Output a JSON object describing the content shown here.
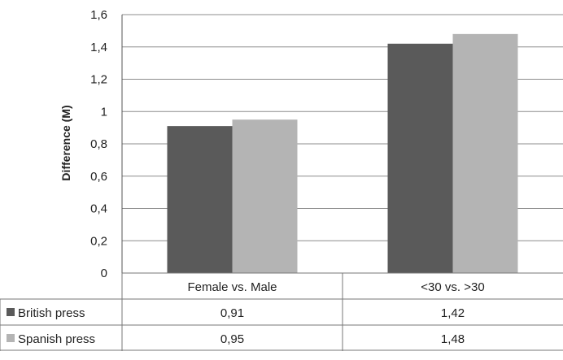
{
  "chart_data": {
    "type": "bar",
    "title": "",
    "xlabel": "",
    "ylabel": "Difference (M)",
    "ylim": [
      0,
      1.6
    ],
    "yticks": [
      "0",
      "0,2",
      "0,4",
      "0,6",
      "0,8",
      "1",
      "1,2",
      "1,4",
      "1,6"
    ],
    "grid": true,
    "categories": [
      "Female vs. Male",
      "<30 vs. >30"
    ],
    "series": [
      {
        "name": "British press",
        "values": [
          0.91,
          1.42
        ],
        "labels": [
          "0,91",
          "1,42"
        ],
        "color": "#5a5a5a"
      },
      {
        "name": "Spanish press",
        "values": [
          0.95,
          1.48
        ],
        "labels": [
          "0,95",
          "1,48"
        ],
        "color": "#b4b4b4"
      }
    ],
    "data_table": true
  }
}
